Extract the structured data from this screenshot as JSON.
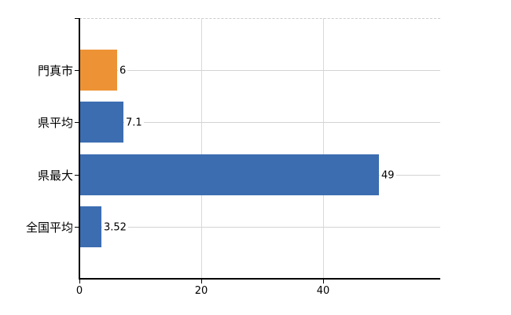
{
  "chart_data": {
    "type": "bar",
    "orientation": "horizontal",
    "title": "",
    "xlabel": "",
    "ylabel": "",
    "categories": [
      "門真市",
      "県平均",
      "県最大",
      "全国平均"
    ],
    "values": [
      6,
      7.1,
      49,
      3.52
    ],
    "value_labels": [
      "6",
      "7.1",
      "49",
      "3.52"
    ],
    "bar_colors": [
      "#EE9335",
      "#3C6DB1",
      "#3C6DB1",
      "#3C6DB1"
    ],
    "highlight_color": "#EE9335",
    "base_color": "#3C6DB1",
    "x_ticks": [
      0,
      20,
      40
    ],
    "x_tick_labels": [
      "0",
      "20",
      "40"
    ],
    "xlim": [
      0,
      59.2
    ],
    "legend": "none",
    "grid": "on",
    "gridline_color": "#D3D3D3",
    "axis_color": "#000000",
    "text_color": "#000000",
    "background_color": "#FFFFFF"
  }
}
